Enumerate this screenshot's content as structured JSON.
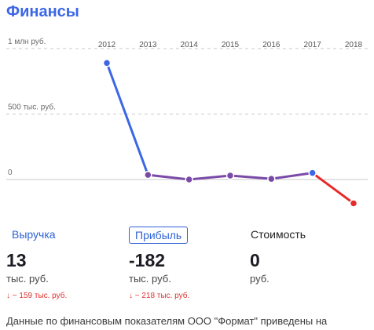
{
  "title": "Финансы",
  "chart_data": {
    "type": "line",
    "x": [
      "2012",
      "2013",
      "2014",
      "2015",
      "2016",
      "2017",
      "2018"
    ],
    "series": [
      {
        "values": [
          890,
          35,
          0,
          30,
          5,
          50,
          -182
        ]
      }
    ],
    "ylim": [
      -200,
      1000
    ],
    "y_ticks": [
      {
        "value": 1000,
        "label": "1 млн руб."
      },
      {
        "value": 500,
        "label": "500 тыс. руб."
      },
      {
        "value": 0,
        "label": "0"
      }
    ],
    "grid": true,
    "colors": {
      "drop": "#3b66e6",
      "flat": "#7a4aa8",
      "negative": "#e52b2b"
    }
  },
  "metrics": [
    {
      "label": "Выручка",
      "value": "13",
      "unit": "тыс. руб.",
      "change": "↓ − 159 тыс. руб."
    },
    {
      "label": "Прибыль",
      "value": "-182",
      "unit": "тыс. руб.",
      "change": "↓ − 218 тыс. руб."
    },
    {
      "label": "Стоимость",
      "value": "0",
      "unit": "руб.",
      "change": ""
    }
  ],
  "footer": "Данные по финансовым показателям ООО \"Формат\" приведены на"
}
